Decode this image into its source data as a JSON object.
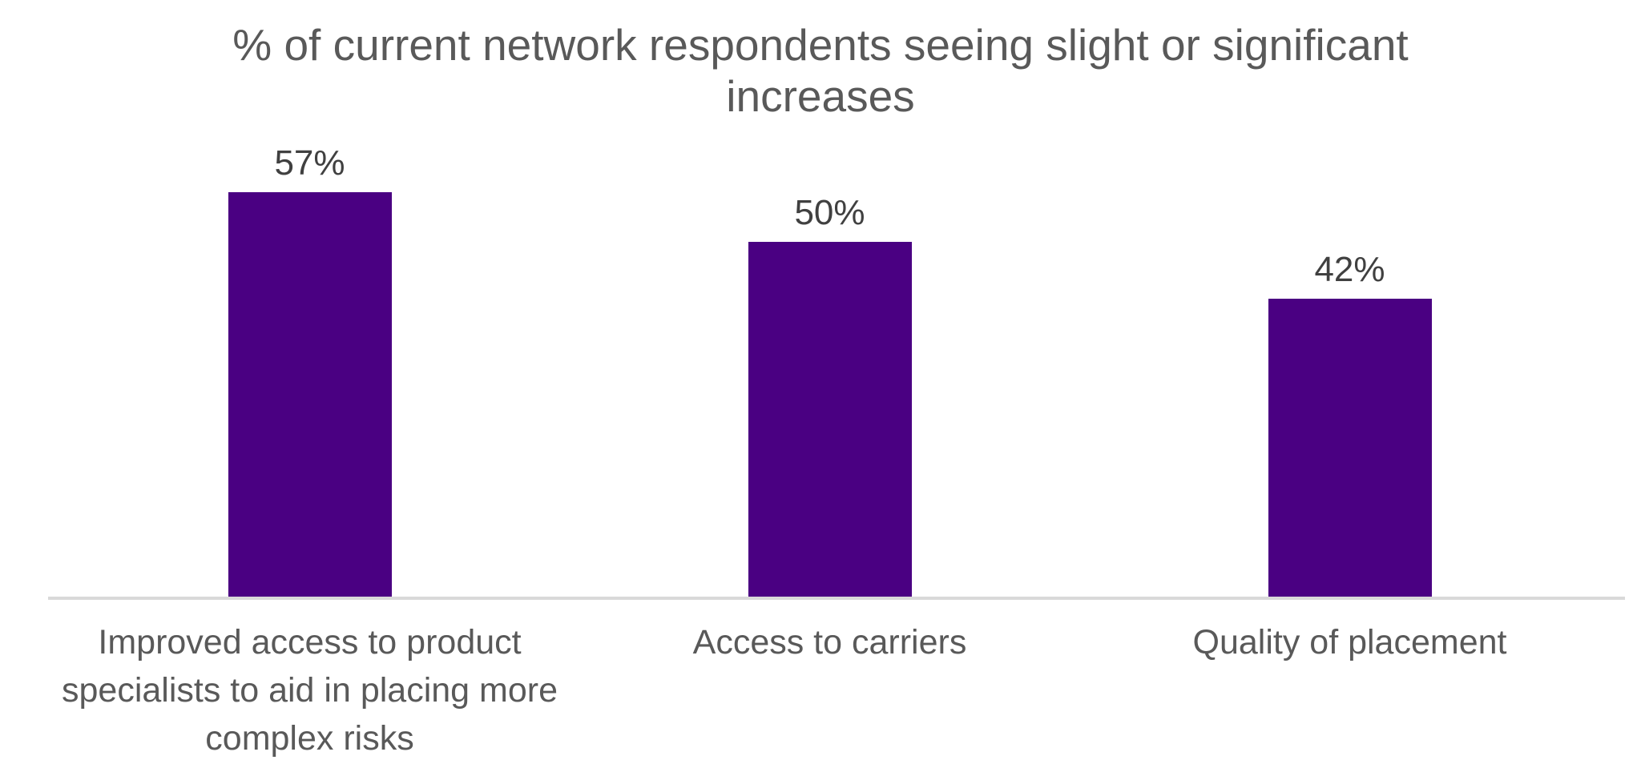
{
  "chart_data": {
    "type": "bar",
    "title": "% of current network respondents seeing slight or significant increases",
    "title_lines": [
      "% of current network respondents seeing slight or significant",
      "increases"
    ],
    "categories": [
      "Improved access to product specialists to aid in placing more complex risks",
      "Access to carriers",
      "Quality of placement"
    ],
    "values": [
      57,
      50,
      42
    ],
    "value_labels": [
      "57%",
      "50%",
      "42%"
    ],
    "xlabel": "",
    "ylabel": "",
    "ylim": [
      0,
      84
    ],
    "grid": false,
    "legend": false,
    "bar_color": "#4a0082",
    "axis_line_color": "#d9d9d9",
    "title_color": "#595959",
    "value_label_color": "#404040",
    "category_label_color": "#595959"
  }
}
